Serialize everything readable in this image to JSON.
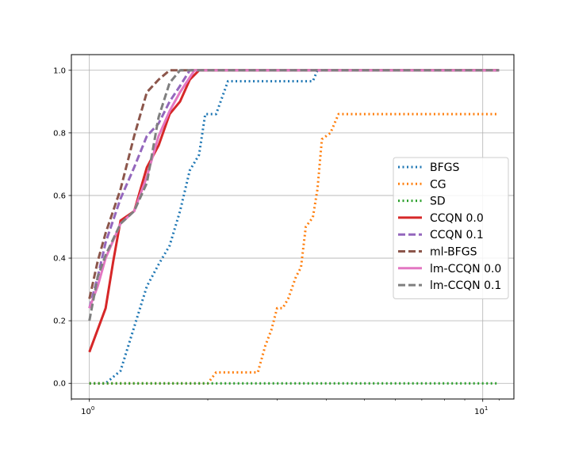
{
  "chart_data": {
    "type": "line",
    "x_scale": "log",
    "xlim": [
      0.9,
      12.0
    ],
    "ylim": [
      -0.05,
      1.05
    ],
    "grid": true,
    "legend_position": "center-right",
    "x_ticks": [
      {
        "value": 1,
        "label": "10",
        "exponent": "0"
      },
      {
        "value": 10,
        "label": "10",
        "exponent": "1"
      }
    ],
    "y_ticks": [
      {
        "value": 0.0,
        "label": "0.0"
      },
      {
        "value": 0.2,
        "label": "0.2"
      },
      {
        "value": 0.4,
        "label": "0.4"
      },
      {
        "value": 0.6,
        "label": "0.6"
      },
      {
        "value": 0.8,
        "label": "0.8"
      },
      {
        "value": 1.0,
        "label": "1.0"
      }
    ],
    "series": [
      {
        "name": "BFGS",
        "color": "#1f77b4",
        "style": "dotted",
        "x": [
          1.0,
          1.1,
          1.2,
          1.3,
          1.4,
          1.5,
          1.6,
          1.7,
          1.8,
          1.9,
          1.97,
          2.1,
          2.25,
          2.5,
          3.0,
          3.4,
          3.7,
          3.8,
          11.0
        ],
        "y": [
          0.0,
          0.0,
          0.04,
          0.18,
          0.31,
          0.38,
          0.44,
          0.55,
          0.68,
          0.73,
          0.86,
          0.86,
          0.965,
          0.965,
          0.965,
          0.965,
          0.965,
          1.0,
          1.0
        ]
      },
      {
        "name": "CG",
        "color": "#ff7f0e",
        "style": "dotted",
        "x": [
          1.0,
          2.0,
          2.1,
          2.5,
          2.68,
          2.8,
          2.9,
          3.0,
          3.1,
          3.2,
          3.35,
          3.45,
          3.55,
          3.7,
          3.8,
          3.9,
          4.1,
          4.3,
          5.0,
          11.0
        ],
        "y": [
          0.0,
          0.0,
          0.035,
          0.035,
          0.035,
          0.12,
          0.17,
          0.24,
          0.24,
          0.27,
          0.34,
          0.37,
          0.5,
          0.53,
          0.62,
          0.78,
          0.8,
          0.86,
          0.86,
          0.86
        ]
      },
      {
        "name": "SD",
        "color": "#2ca02c",
        "style": "dotted",
        "x": [
          1.0,
          11.0
        ],
        "y": [
          0.0,
          0.0
        ]
      },
      {
        "name": "CCQN 0.0",
        "color": "#d62728",
        "style": "solid",
        "x": [
          1.0,
          1.1,
          1.15,
          1.2,
          1.3,
          1.4,
          1.5,
          1.6,
          1.7,
          1.8,
          1.9,
          11.0
        ],
        "y": [
          0.1,
          0.24,
          0.39,
          0.52,
          0.55,
          0.69,
          0.76,
          0.86,
          0.9,
          0.97,
          1.0,
          1.0
        ]
      },
      {
        "name": "CCQN 0.1",
        "color": "#9467bd",
        "style": "dashed",
        "x": [
          1.0,
          1.05,
          1.1,
          1.2,
          1.3,
          1.4,
          1.5,
          1.6,
          1.7,
          1.8,
          11.0
        ],
        "y": [
          0.24,
          0.34,
          0.45,
          0.59,
          0.69,
          0.79,
          0.83,
          0.9,
          0.95,
          1.0,
          1.0
        ]
      },
      {
        "name": "ml-BFGS",
        "color": "#8c564b",
        "style": "dashed",
        "x": [
          1.0,
          1.05,
          1.1,
          1.2,
          1.3,
          1.4,
          1.5,
          1.6,
          1.7,
          11.0
        ],
        "y": [
          0.27,
          0.39,
          0.48,
          0.62,
          0.79,
          0.93,
          0.97,
          1.0,
          1.0,
          1.0
        ]
      },
      {
        "name": "lm-CCQN 0.0",
        "color": "#e377c2",
        "style": "solid",
        "x": [
          1.0,
          1.05,
          1.1,
          1.2,
          1.3,
          1.4,
          1.5,
          1.6,
          1.7,
          1.85,
          11.0
        ],
        "y": [
          0.24,
          0.31,
          0.4,
          0.51,
          0.55,
          0.66,
          0.79,
          0.87,
          0.93,
          1.0,
          1.0
        ]
      },
      {
        "name": "lm-CCQN 0.1",
        "color": "#7f7f7f",
        "style": "dashed",
        "x": [
          1.0,
          1.05,
          1.1,
          1.2,
          1.3,
          1.4,
          1.5,
          1.6,
          1.7,
          1.8,
          11.0
        ],
        "y": [
          0.2,
          0.34,
          0.41,
          0.51,
          0.55,
          0.64,
          0.85,
          0.96,
          1.0,
          1.0,
          1.0
        ]
      }
    ]
  }
}
